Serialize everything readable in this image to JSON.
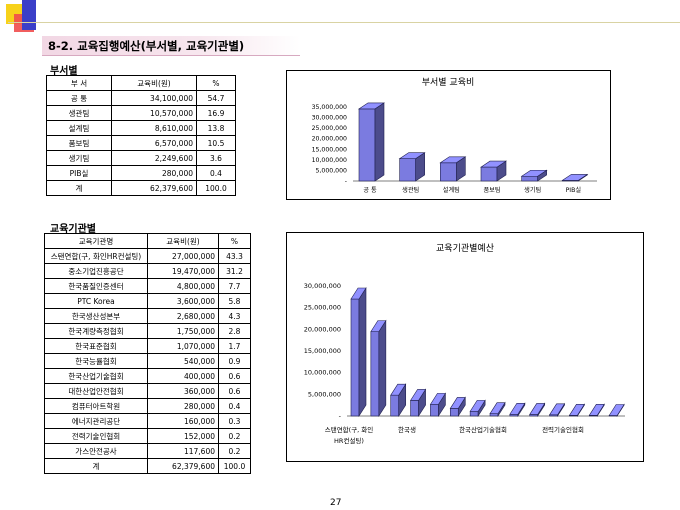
{
  "slide": {
    "title": "8-2. 교육집행예산(부서별, 교육기관별)",
    "page_number": "27"
  },
  "dept": {
    "label": "부서별",
    "headers": [
      "부 서",
      "교육비(원)",
      "%"
    ],
    "rows": [
      [
        "공 통",
        "34,100,000",
        "54.7"
      ],
      [
        "생관팀",
        "10,570,000",
        "16.9"
      ],
      [
        "설계팀",
        "8,610,000",
        "13.8"
      ],
      [
        "품보팀",
        "6,570,000",
        "10.5"
      ],
      [
        "생기팀",
        "2,249,600",
        "3.6"
      ],
      [
        "PIB실",
        "280,000",
        "0.4"
      ],
      [
        "계",
        "62,379,600",
        "100.0"
      ]
    ]
  },
  "inst": {
    "label": "교육기관별",
    "headers": [
      "교육기관명",
      "교육비(원)",
      "%"
    ],
    "rows": [
      [
        "스탠연합(구, 화인HR컨설팅)",
        "27,000,000",
        "43.3"
      ],
      [
        "중소기업진흥공단",
        "19,470,000",
        "31.2"
      ],
      [
        "한국품질인증센터",
        "4,800,000",
        "7.7"
      ],
      [
        "PTC Korea",
        "3,600,000",
        "5.8"
      ],
      [
        "한국생산성본부",
        "2,680,000",
        "4.3"
      ],
      [
        "한국계량측정협회",
        "1,750,000",
        "2.8"
      ],
      [
        "한국표준협회",
        "1,070,000",
        "1.7"
      ],
      [
        "한국능률협회",
        "540,000",
        "0.9"
      ],
      [
        "한국산업기술협회",
        "400,000",
        "0.6"
      ],
      [
        "대한산업안전협회",
        "360,000",
        "0.6"
      ],
      [
        "컴퓨터아트학원",
        "280,000",
        "0.4"
      ],
      [
        "에너지관리공단",
        "160,000",
        "0.3"
      ],
      [
        "전력기술인협회",
        "152,000",
        "0.2"
      ],
      [
        "가스안전공사",
        "117,600",
        "0.2"
      ],
      [
        "계",
        "62,379,600",
        "100.0"
      ]
    ]
  },
  "chart_data": [
    {
      "type": "bar",
      "title": "부서별 교육비",
      "categories": [
        "공 통",
        "생관팀",
        "설계팀",
        "품보팀",
        "생기팀",
        "PIB실"
      ],
      "values": [
        34100000,
        10570000,
        8610000,
        6570000,
        2249600,
        280000
      ],
      "ylim": [
        0,
        35000000
      ],
      "yticks": [
        "-",
        "5,000,000",
        "10,000,000",
        "15,000,000",
        "20,000,000",
        "25,000,000",
        "30,000,000",
        "35,000,000"
      ],
      "color": "#7b7be0"
    },
    {
      "type": "bar",
      "title": "교육기관별예산",
      "categories": [
        "스탠연합(구, 화인HR컨설팅)",
        "중소기업진흥공단",
        "한국품질인증센터",
        "PTC Korea",
        "한국생산성본부",
        "한국계량측정협회",
        "한국표준협회",
        "한국능률협회",
        "한국산업기술협회",
        "대한산업안전협회",
        "컴퓨터아트학원",
        "에너지관리공단",
        "전력기술인협회",
        "가스안전공사"
      ],
      "values": [
        27000000,
        19470000,
        4800000,
        3600000,
        2680000,
        1750000,
        1070000,
        540000,
        400000,
        360000,
        280000,
        160000,
        152000,
        117600
      ],
      "ylim": [
        0,
        30000000
      ],
      "yticks": [
        "-",
        "5,000,000",
        "10,000,000",
        "15,000,000",
        "20,000,000",
        "25,000,000",
        "30,000,000"
      ],
      "xlabels": [
        "스탠연합(구, 화인",
        "HR컨설팅)",
        "한국생",
        "한국산업기술협회",
        "전력기술인협회"
      ],
      "color": "#7b7be0"
    }
  ]
}
